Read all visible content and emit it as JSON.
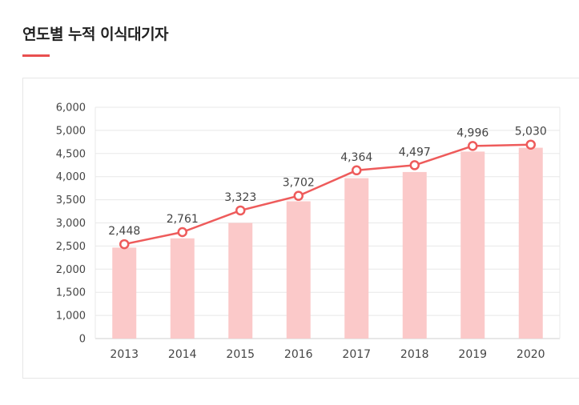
{
  "page": {
    "title": "연도별 누적 이식대기자",
    "accent_color": "#e94f4f"
  },
  "chart_data": {
    "type": "bar",
    "categories": [
      "2013",
      "2014",
      "2015",
      "2016",
      "2017",
      "2018",
      "2019",
      "2020"
    ],
    "series": [
      {
        "values": [
          2360,
          2600,
          3000,
          3560,
          4160,
          4320,
          4850,
          4950
        ],
        "color": "#fbc9c9"
      },
      {
        "values": [
          2448,
          2761,
          3323,
          3702,
          4364,
          4497,
          4996,
          5030
        ],
        "color": "#ee5b5b",
        "line": true
      }
    ],
    "data_labels": [
      "2,448",
      "2,761",
      "3,323",
      "3,702",
      "4,364",
      "4,497",
      "4,996",
      "5,030"
    ],
    "y_ticks": [
      "0",
      "1,000",
      "1,500",
      "2,000",
      "2,500",
      "3,000",
      "3,500",
      "4,000",
      "4,500",
      "5,000",
      "6,000"
    ],
    "ylim": [
      0,
      6000
    ],
    "grid": true,
    "legend": "none"
  }
}
